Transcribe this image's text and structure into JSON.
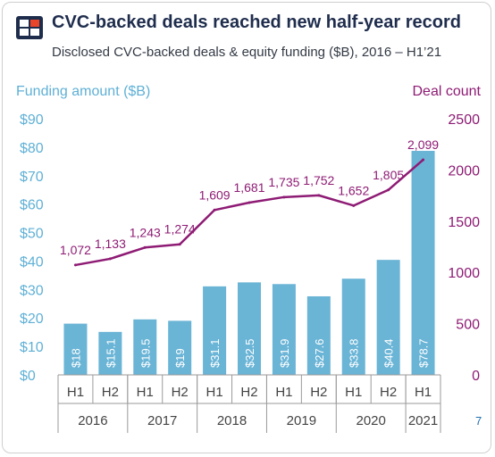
{
  "header": {
    "title": "CVC-backed deals reached new half-year record",
    "subtitle": "Disclosed CVC-backed deals & equity funding ($B), 2016 – H1’21",
    "page_number": "7"
  },
  "colors": {
    "bar": "#6ab4d6",
    "line": "#8e1b74",
    "axis_left": "#5fb0d6",
    "axis_right": "#8e1b74",
    "logo_dark": "#1f2d4d",
    "logo_accent": "#e8452b"
  },
  "chart_data": {
    "type": "bar",
    "ylabel": "Funding amount ($B)",
    "y2label": "Deal count",
    "ylim": [
      0,
      90
    ],
    "y2lim": [
      0,
      2500
    ],
    "yticks": [
      "$0",
      "$10",
      "$20",
      "$30",
      "$40",
      "$50",
      "$60",
      "$70",
      "$80",
      "$90"
    ],
    "y2ticks": [
      "0",
      "500",
      "1000",
      "1500",
      "2000",
      "2500"
    ],
    "categories": [
      "H1",
      "H2",
      "H1",
      "H2",
      "H1",
      "H2",
      "H1",
      "H2",
      "H1",
      "H2",
      "H1"
    ],
    "years": [
      {
        "label": "2016",
        "span": 2
      },
      {
        "label": "2017",
        "span": 2
      },
      {
        "label": "2018",
        "span": 2
      },
      {
        "label": "2019",
        "span": 2
      },
      {
        "label": "2020",
        "span": 2
      },
      {
        "label": "2021",
        "span": 1
      }
    ],
    "series": [
      {
        "type": "bar",
        "values": [
          18,
          15.1,
          19.5,
          19,
          31.1,
          32.5,
          31.9,
          27.6,
          33.8,
          40.4,
          78.7
        ],
        "labels": [
          "$18",
          "$15.1",
          "$19.5",
          "$19",
          "$31.1",
          "$32.5",
          "$31.9",
          "$27.6",
          "$33.8",
          "$40.4",
          "$78.7"
        ]
      },
      {
        "type": "line",
        "axis": "right",
        "values": [
          1072,
          1133,
          1243,
          1274,
          1609,
          1681,
          1735,
          1752,
          1652,
          1805,
          2099
        ],
        "labels": [
          "1,072",
          "1,133",
          "1,243",
          "1,274",
          "1,609",
          "1,681",
          "1,735",
          "1,752",
          "1,652",
          "1,805",
          "2,099"
        ]
      }
    ]
  }
}
